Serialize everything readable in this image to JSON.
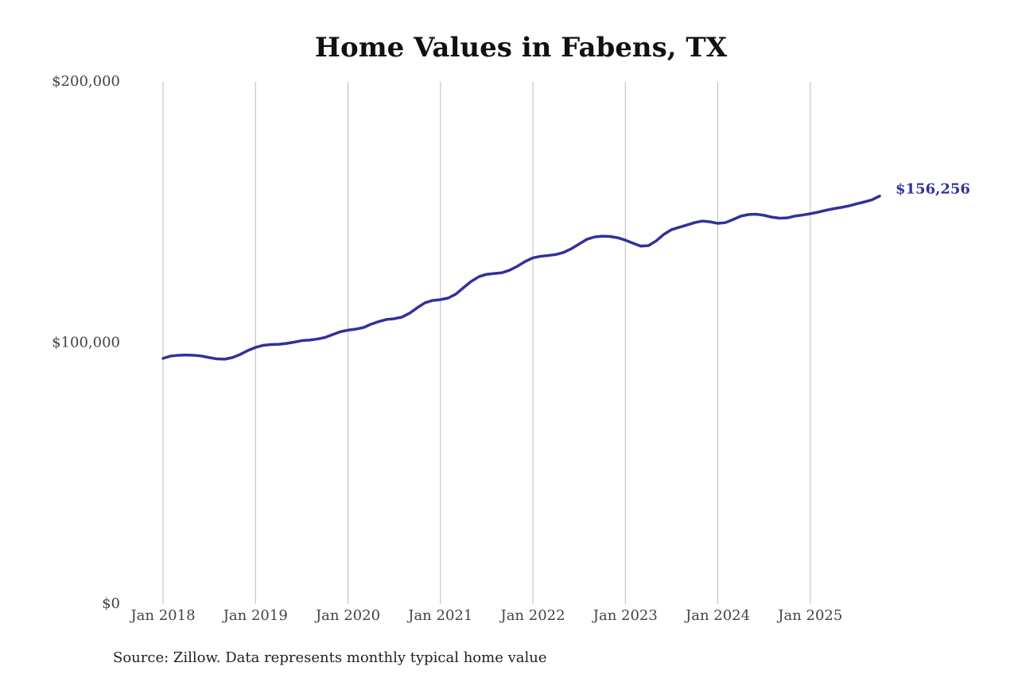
{
  "chart_data": {
    "type": "line",
    "title": "Home Values in Fabens, TX",
    "note": "Source: Zillow. Data represents monthly typical home value",
    "x": [
      "2018-01",
      "2018-02",
      "2018-03",
      "2018-04",
      "2018-05",
      "2018-06",
      "2018-07",
      "2018-08",
      "2018-09",
      "2018-10",
      "2018-11",
      "2018-12",
      "2019-01",
      "2019-02",
      "2019-03",
      "2019-04",
      "2019-05",
      "2019-06",
      "2019-07",
      "2019-08",
      "2019-09",
      "2019-10",
      "2019-11",
      "2019-12",
      "2020-01",
      "2020-02",
      "2020-03",
      "2020-04",
      "2020-05",
      "2020-06",
      "2020-07",
      "2020-08",
      "2020-09",
      "2020-10",
      "2020-11",
      "2020-12",
      "2021-01",
      "2021-02",
      "2021-03",
      "2021-04",
      "2021-05",
      "2021-06",
      "2021-07",
      "2021-08",
      "2021-09",
      "2021-10",
      "2021-11",
      "2021-12",
      "2022-01",
      "2022-02",
      "2022-03",
      "2022-04",
      "2022-05",
      "2022-06",
      "2022-07",
      "2022-08",
      "2022-09",
      "2022-10",
      "2022-11",
      "2022-12",
      "2023-01",
      "2023-02",
      "2023-03",
      "2023-04",
      "2023-05",
      "2023-06",
      "2023-07",
      "2023-08",
      "2023-09",
      "2023-10",
      "2023-11",
      "2023-12",
      "2024-01",
      "2024-02",
      "2024-03",
      "2024-04",
      "2024-05",
      "2024-06",
      "2024-07",
      "2024-08",
      "2024-09",
      "2024-10",
      "2024-11",
      "2024-12",
      "2025-01",
      "2025-02",
      "2025-03",
      "2025-04",
      "2025-05",
      "2025-06",
      "2025-07",
      "2025-08",
      "2025-09",
      "2025-10"
    ],
    "series": [
      {
        "color": "#33309a",
        "values": [
          94100,
          95000,
          95300,
          95400,
          95300,
          95000,
          94400,
          93900,
          93800,
          94400,
          95600,
          97100,
          98300,
          99100,
          99400,
          99500,
          99800,
          100300,
          100900,
          101100,
          101500,
          102100,
          103200,
          104300,
          104900,
          105300,
          105900,
          107200,
          108200,
          109000,
          109300,
          109900,
          111400,
          113500,
          115400,
          116300,
          116600,
          117200,
          118700,
          121200,
          123600,
          125400,
          126300,
          126600,
          126900,
          127900,
          129400,
          131200,
          132600,
          133200,
          133500,
          133900,
          134700,
          136100,
          137900,
          139700,
          140600,
          140900,
          140800,
          140300,
          139400,
          138200,
          137100,
          137300,
          139100,
          141600,
          143400,
          144300,
          145200,
          146100,
          146700,
          146400,
          145800,
          146100,
          147300,
          148600,
          149200,
          149300,
          148900,
          148200,
          147800,
          147900,
          148600,
          149000,
          149500,
          150100,
          150800,
          151400,
          151900,
          152500,
          153300,
          154000,
          154800,
          156256
        ],
        "value_labels": [
          null,
          null,
          null,
          null,
          null,
          null,
          null,
          null,
          null,
          null,
          null,
          null,
          null,
          null,
          null,
          null,
          null,
          null,
          null,
          null,
          null,
          null,
          null,
          null,
          null,
          null,
          null,
          null,
          null,
          null,
          null,
          null,
          null,
          null,
          null,
          null,
          null,
          null,
          null,
          null,
          null,
          null,
          null,
          null,
          null,
          null,
          null,
          null,
          null,
          null,
          null,
          null,
          null,
          null,
          null,
          null,
          null,
          null,
          null,
          null,
          null,
          null,
          null,
          null,
          null,
          null,
          null,
          null,
          null,
          null,
          null,
          null,
          null,
          null,
          null,
          null,
          null,
          null,
          null,
          null,
          null,
          null,
          null,
          null,
          null,
          null,
          null,
          null,
          null,
          null,
          null,
          null,
          null,
          "$156,256"
        ]
      }
    ],
    "xlim": [
      "2018-01",
      "2025-10"
    ],
    "xticks": [
      {
        "value": "2018-01",
        "label": "Jan 2018"
      },
      {
        "value": "2019-01",
        "label": "Jan 2019"
      },
      {
        "value": "2020-01",
        "label": "Jan 2020"
      },
      {
        "value": "2021-01",
        "label": "Jan 2021"
      },
      {
        "value": "2022-01",
        "label": "Jan 2022"
      },
      {
        "value": "2023-01",
        "label": "Jan 2023"
      },
      {
        "value": "2024-01",
        "label": "Jan 2024"
      },
      {
        "value": "2025-01",
        "label": "Jan 2025"
      }
    ],
    "ylim": [
      0,
      200000
    ],
    "yticks": [
      {
        "value": 0,
        "label": "$0"
      },
      {
        "value": 100000,
        "label": "$100,000"
      },
      {
        "value": 200000,
        "label": "$200,000"
      }
    ],
    "grid": "x"
  }
}
